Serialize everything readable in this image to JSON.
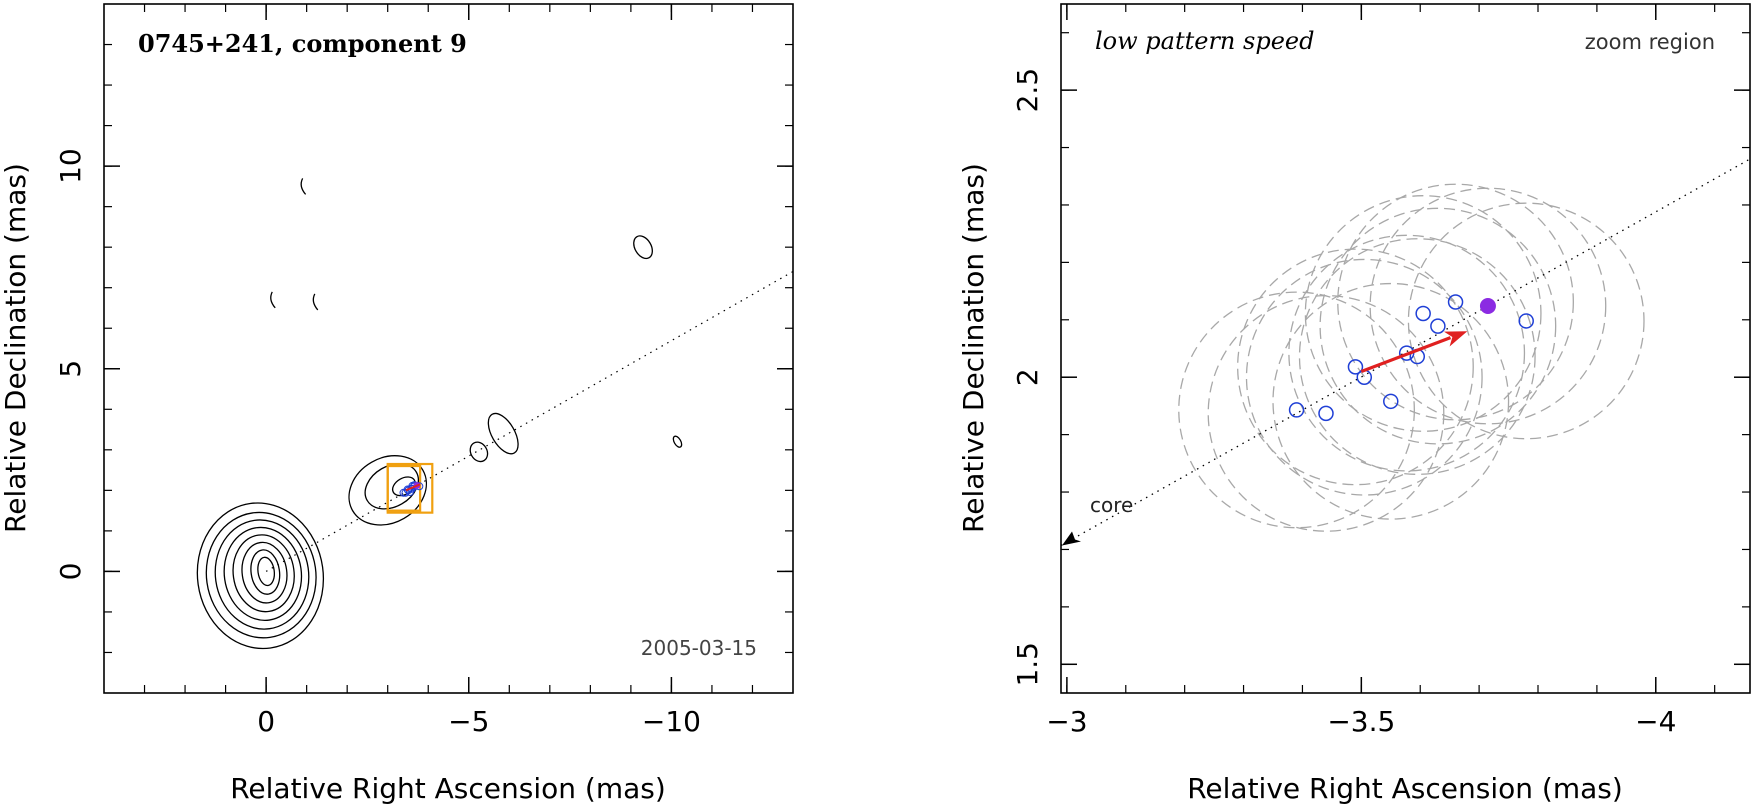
{
  "chart_data": [
    {
      "type": "contour",
      "title": "0745+241, component 9",
      "date": "2005-03-15",
      "xlabel": "Relative Right Ascension (mas)",
      "ylabel": "Relative Declination (mas)",
      "xlim": [
        4,
        -13
      ],
      "ylim": [
        -3,
        14
      ],
      "xticks": [
        0,
        -5,
        -10
      ],
      "yticks": [
        0,
        5,
        10
      ],
      "core_center": [
        0,
        0
      ],
      "core_contour_semi_axes": [
        [
          0.2,
          0.35
        ],
        [
          0.35,
          0.55
        ],
        [
          0.55,
          0.75
        ],
        [
          0.75,
          0.95
        ],
        [
          0.95,
          1.15
        ],
        [
          1.15,
          1.35
        ],
        [
          1.35,
          1.55
        ],
        [
          1.55,
          1.8
        ]
      ],
      "jet_contours": [
        {
          "ra": -3.0,
          "dec": 2.0,
          "rx": 1.0,
          "ry": 0.8
        },
        {
          "ra": -3.1,
          "dec": 2.1,
          "rx": 0.7,
          "ry": 0.5
        },
        {
          "ra": -3.4,
          "dec": 2.1,
          "rx": 0.3,
          "ry": 0.2
        },
        {
          "ra": -5.25,
          "dec": 2.95,
          "rx": 0.2,
          "ry": 0.25
        },
        {
          "ra": -5.85,
          "dec": 3.4,
          "rx": 0.28,
          "ry": 0.55
        },
        {
          "ra": -9.3,
          "dec": 8.0,
          "rx": 0.2,
          "ry": 0.3
        },
        {
          "ra": -10.15,
          "dec": 3.2,
          "rx": 0.08,
          "ry": 0.15
        }
      ],
      "arc_contours": [
        [
          -0.95,
          9.5
        ],
        [
          -0.2,
          6.7
        ],
        [
          -1.25,
          6.65
        ]
      ],
      "jet_axis": {
        "from": [
          0,
          0
        ],
        "to": [
          -13,
          7.4
        ]
      },
      "component_positions": [
        [
          -3.39,
          1.94
        ],
        [
          -3.44,
          1.94
        ],
        [
          -3.49,
          2.02
        ],
        [
          -3.51,
          2.0
        ],
        [
          -3.55,
          1.96
        ],
        [
          -3.58,
          2.04
        ],
        [
          -3.6,
          2.04
        ],
        [
          -3.61,
          2.11
        ],
        [
          -3.64,
          2.09
        ],
        [
          -3.66,
          2.13
        ],
        [
          -3.78,
          2.1
        ]
      ],
      "highlight_position": [
        -3.72,
        2.12
      ],
      "zoom_boxes": [
        {
          "ra": [
            -3.0,
            -4.1
          ],
          "dec": [
            1.45,
            2.65
          ]
        },
        {
          "ra": [
            -3.0,
            -3.8
          ],
          "dec": [
            1.5,
            2.6
          ]
        }
      ],
      "colors": {
        "axes": "#000000",
        "contours": "#000000",
        "components": "#1f3fd6",
        "highlight": "#8b2be2",
        "vector": "#e02020",
        "zoom_box": "#f0a010"
      }
    },
    {
      "type": "scatter",
      "title": "low pattern speed",
      "label": "zoom region",
      "xlabel": "Relative Right Ascension (mas)",
      "ylabel": "Relative Declination (mas)",
      "xlim": [
        -2.99,
        -4.16
      ],
      "ylim": [
        1.45,
        2.65
      ],
      "xticks": [
        -3,
        -3.5,
        -4
      ],
      "xtick_labels": [
        "−3",
        "−3.5",
        "−4"
      ],
      "yticks": [
        1.5,
        2,
        2.5
      ],
      "ytick_labels": [
        "1.5",
        "2",
        "2.5"
      ],
      "points": [
        [
          -3.39,
          1.943
        ],
        [
          -3.44,
          1.937
        ],
        [
          -3.49,
          2.018
        ],
        [
          -3.505,
          2.0
        ],
        [
          -3.55,
          1.958
        ],
        [
          -3.577,
          2.042
        ],
        [
          -3.595,
          2.036
        ],
        [
          -3.605,
          2.111
        ],
        [
          -3.63,
          2.089
        ],
        [
          -3.66,
          2.131
        ],
        [
          -3.78,
          2.098
        ]
      ],
      "highlight_point": [
        -3.715,
        2.124
      ],
      "error_circle_radius_ra": 0.2,
      "arrow": {
        "from": [
          -3.5,
          2.01
        ],
        "to": [
          -3.68,
          2.08
        ]
      },
      "jet_axis": {
        "from": [
          -2.99,
          1.707
        ],
        "to": [
          -4.16,
          2.38
        ]
      },
      "annotation": "core",
      "colors": {
        "axes": "#000000",
        "points": "#1f3fd6",
        "highlight": "#8b2be2",
        "arrow": "#e02020",
        "circles": "#a8a8a8"
      }
    }
  ]
}
